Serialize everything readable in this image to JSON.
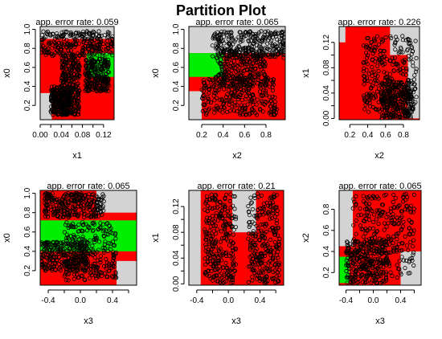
{
  "title": "Partition Plot",
  "colors": {
    "region_a": "#ff0000",
    "region_b": "#00ee00",
    "region_c": "#d3d3d3",
    "points": "#000000",
    "axis": "#000000"
  },
  "chart_data": [
    {
      "type": "partition",
      "title": "app. error rate: 0.059",
      "xlabel": "x1",
      "ylabel": "x0",
      "xlim": [
        0.0,
        0.14
      ],
      "ylim": [
        0.05,
        1.03
      ],
      "xticks": [
        0.0,
        0.02,
        0.04,
        0.06,
        0.08,
        0.1,
        0.12
      ],
      "xticklabels": [
        "0.00",
        "",
        "0.04",
        "",
        "0.08",
        "",
        "0.12"
      ],
      "yticks": [
        0.2,
        0.4,
        0.6,
        0.8,
        1.0
      ],
      "yticklabels": [
        "0.2",
        "0.4",
        "0.6",
        "0.8",
        "1.0"
      ],
      "background": "red",
      "regions": [
        {
          "color": "gray",
          "x": [
            0.0,
            0.14
          ],
          "y": [
            0.9,
            1.03
          ]
        },
        {
          "color": "gray",
          "x": [
            0.0,
            0.022
          ],
          "y": [
            0.05,
            0.33
          ]
        },
        {
          "color": "green",
          "x": [
            0.088,
            0.14
          ],
          "y": [
            0.5,
            0.75
          ]
        }
      ],
      "clusters": [
        {
          "x": [
            0.0,
            0.14
          ],
          "y": [
            0.72,
            0.98
          ]
        },
        {
          "x": [
            0.04,
            0.075
          ],
          "y": [
            0.1,
            0.75
          ]
        },
        {
          "x": [
            0.085,
            0.13
          ],
          "y": [
            0.35,
            0.7
          ]
        },
        {
          "x": [
            0.02,
            0.06
          ],
          "y": [
            0.1,
            0.4
          ]
        }
      ]
    },
    {
      "type": "partition",
      "title": "app. error rate: 0.065",
      "xlabel": "x2",
      "ylabel": "x0",
      "xlim": [
        0.08,
        0.98
      ],
      "ylim": [
        0.05,
        1.03
      ],
      "xticks": [
        0.2,
        0.4,
        0.6,
        0.8
      ],
      "xticklabels": [
        "0.2",
        "0.4",
        "0.6",
        "0.8"
      ],
      "yticks": [
        0.2,
        0.4,
        0.6,
        0.8,
        1.0
      ],
      "yticklabels": [
        "0.2",
        "0.4",
        "0.6",
        "0.8",
        "1.0"
      ],
      "background": "red",
      "regions": [
        {
          "color": "gray",
          "x": [
            0.08,
            0.98
          ],
          "y": [
            0.75,
            1.03
          ]
        },
        {
          "color": "green",
          "x": [
            0.08,
            0.4
          ],
          "y": [
            0.5,
            0.75
          ]
        },
        {
          "color": "gray",
          "x": [
            0.08,
            0.2
          ],
          "y": [
            0.05,
            0.35
          ]
        }
      ],
      "clusters": [
        {
          "x": [
            0.3,
            0.98
          ],
          "y": [
            0.7,
            0.98
          ]
        },
        {
          "x": [
            0.2,
            0.9
          ],
          "y": [
            0.1,
            0.5
          ]
        },
        {
          "x": [
            0.35,
            0.8
          ],
          "y": [
            0.4,
            0.8
          ]
        }
      ]
    },
    {
      "type": "partition",
      "title": "app. error rate: 0.226",
      "xlabel": "x2",
      "ylabel": "x1",
      "xlim": [
        0.08,
        0.98
      ],
      "ylim": [
        -0.002,
        0.145
      ],
      "xticks": [
        0.2,
        0.4,
        0.6,
        0.8
      ],
      "xticklabels": [
        "0.2",
        "0.4",
        "0.6",
        "0.8"
      ],
      "yticks": [
        0.0,
        0.02,
        0.04,
        0.06,
        0.08,
        0.1,
        0.12
      ],
      "yticklabels": [
        "0.00",
        "",
        "0.04",
        "",
        "0.08",
        "",
        "0.12"
      ],
      "background": "red",
      "regions": [
        {
          "color": "gray",
          "x": [
            0.65,
            0.98
          ],
          "y": [
            0.1,
            0.145
          ]
        },
        {
          "color": "gray",
          "x": [
            0.85,
            0.98
          ],
          "y": [
            0.0,
            0.1
          ]
        },
        {
          "color": "gray",
          "x": [
            0.08,
            0.15
          ],
          "y": [
            0.12,
            0.145
          ]
        }
      ],
      "clusters": [
        {
          "x": [
            0.35,
            0.95
          ],
          "y": [
            0.01,
            0.13
          ]
        },
        {
          "x": [
            0.55,
            0.9
          ],
          "y": [
            0.0,
            0.06
          ]
        }
      ]
    },
    {
      "type": "partition",
      "title": "app. error rate: 0.065",
      "xlabel": "x3",
      "ylabel": "x0",
      "xlim": [
        -0.5,
        0.7
      ],
      "ylim": [
        0.05,
        1.03
      ],
      "xticks": [
        -0.4,
        -0.2,
        0.0,
        0.2,
        0.4,
        0.6
      ],
      "xticklabels": [
        "-0.4",
        "",
        "0.0",
        "",
        "0.4",
        ""
      ],
      "yticks": [
        0.2,
        0.4,
        0.6,
        0.8,
        1.0
      ],
      "yticklabels": [
        "0.2",
        "0.4",
        "0.6",
        "0.8",
        "1.0"
      ],
      "background": "red",
      "regions": [
        {
          "color": "gray",
          "x": [
            0.2,
            0.7
          ],
          "y": [
            0.8,
            1.03
          ]
        },
        {
          "color": "green",
          "x": [
            -0.5,
            0.7
          ],
          "y": [
            0.4,
            0.72
          ]
        },
        {
          "color": "gray",
          "x": [
            0.45,
            0.7
          ],
          "y": [
            0.05,
            0.3
          ]
        }
      ],
      "clusters": [
        {
          "x": [
            -0.45,
            0.3
          ],
          "y": [
            0.75,
            1.0
          ]
        },
        {
          "x": [
            -0.2,
            0.45
          ],
          "y": [
            0.1,
            0.7
          ]
        },
        {
          "x": [
            -0.5,
            0.1
          ],
          "y": [
            0.2,
            0.5
          ]
        }
      ]
    },
    {
      "type": "partition",
      "title": "app. error rate: 0.21",
      "xlabel": "x3",
      "ylabel": "x1",
      "xlim": [
        -0.5,
        0.7
      ],
      "ylim": [
        -0.002,
        0.145
      ],
      "xticks": [
        -0.4,
        -0.2,
        0.0,
        0.2,
        0.4,
        0.6
      ],
      "xticklabels": [
        "-0.4",
        "",
        "0.0",
        "",
        "0.4",
        ""
      ],
      "yticks": [
        0.0,
        0.02,
        0.04,
        0.06,
        0.08,
        0.1,
        0.12
      ],
      "yticklabels": [
        "0.00",
        "",
        "0.04",
        "",
        "0.08",
        "",
        "0.12"
      ],
      "background": "red",
      "regions": [
        {
          "color": "gray",
          "x": [
            -0.5,
            -0.35
          ],
          "y": [
            -0.002,
            0.145
          ]
        },
        {
          "color": "gray",
          "x": [
            0.05,
            0.35
          ],
          "y": [
            0.08,
            0.145
          ]
        }
      ],
      "clusters": [
        {
          "x": [
            -0.3,
            0.1
          ],
          "y": [
            0.0,
            0.14
          ]
        },
        {
          "x": [
            0.25,
            0.65
          ],
          "y": [
            0.0,
            0.14
          ]
        }
      ]
    },
    {
      "type": "partition",
      "title": "app. error rate: 0.065",
      "xlabel": "x3",
      "ylabel": "x2",
      "xlim": [
        -0.5,
        0.7
      ],
      "ylim": [
        0.08,
        0.98
      ],
      "xticks": [
        -0.4,
        -0.2,
        0.0,
        0.2,
        0.4,
        0.6
      ],
      "xticklabels": [
        "-0.4",
        "",
        "0.0",
        "",
        "0.4",
        ""
      ],
      "yticks": [
        0.2,
        0.4,
        0.6,
        0.8
      ],
      "yticklabels": [
        "0.2",
        "0.4",
        "0.6",
        "0.8"
      ],
      "background": "red",
      "regions": [
        {
          "color": "gray",
          "x": [
            -0.5,
            -0.3
          ],
          "y": [
            0.45,
            0.98
          ]
        },
        {
          "color": "gray",
          "x": [
            0.4,
            0.7
          ],
          "y": [
            0.08,
            0.4
          ]
        },
        {
          "color": "green",
          "x": [
            -0.5,
            -0.35
          ],
          "y": [
            0.1,
            0.35
          ]
        }
      ],
      "clusters": [
        {
          "x": [
            -0.3,
            0.6
          ],
          "y": [
            0.15,
            0.95
          ]
        },
        {
          "x": [
            -0.4,
            0.2
          ],
          "y": [
            0.1,
            0.5
          ]
        }
      ]
    }
  ]
}
